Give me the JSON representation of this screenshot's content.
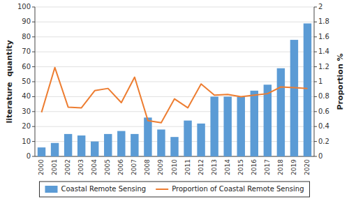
{
  "chart_data": {
    "type": "bar",
    "categories": [
      "2000",
      "2001",
      "2002",
      "2003",
      "2004",
      "2005",
      "2006",
      "2007",
      "2008",
      "2009",
      "2010",
      "2011",
      "2012",
      "2013",
      "2014",
      "2015",
      "2016",
      "2017",
      "2018",
      "2019",
      "2020"
    ],
    "series": [
      {
        "name": "Coastal Remote Sensing",
        "type": "bar",
        "color": "#5B9BD5",
        "values": [
          6,
          9,
          15,
          14,
          10,
          15,
          17,
          15,
          26,
          18,
          13,
          24,
          22,
          40,
          40,
          40,
          44,
          48,
          59,
          78,
          89
        ]
      },
      {
        "name": "Proportion of Coastal Remote Sensing",
        "type": "line",
        "color": "#ED7D31",
        "axis": "y2",
        "values": [
          0.59,
          1.19,
          0.66,
          0.65,
          0.88,
          0.91,
          0.72,
          1.06,
          0.48,
          0.45,
          0.77,
          0.65,
          0.97,
          0.82,
          0.83,
          0.8,
          0.82,
          0.84,
          0.93,
          0.92,
          0.91
        ]
      }
    ],
    "y_label": "literature  quantity",
    "y2_label": "Proportion %",
    "ylim": [
      0,
      100
    ],
    "yticks": [
      0,
      10,
      20,
      30,
      40,
      50,
      60,
      70,
      80,
      90,
      100
    ],
    "y2lim": [
      0,
      2
    ],
    "y2ticks": [
      0,
      0.2,
      0.4,
      0.6,
      0.8,
      1,
      1.2,
      1.4,
      1.6,
      1.8,
      2
    ],
    "grid": true,
    "legend": "bottom"
  }
}
